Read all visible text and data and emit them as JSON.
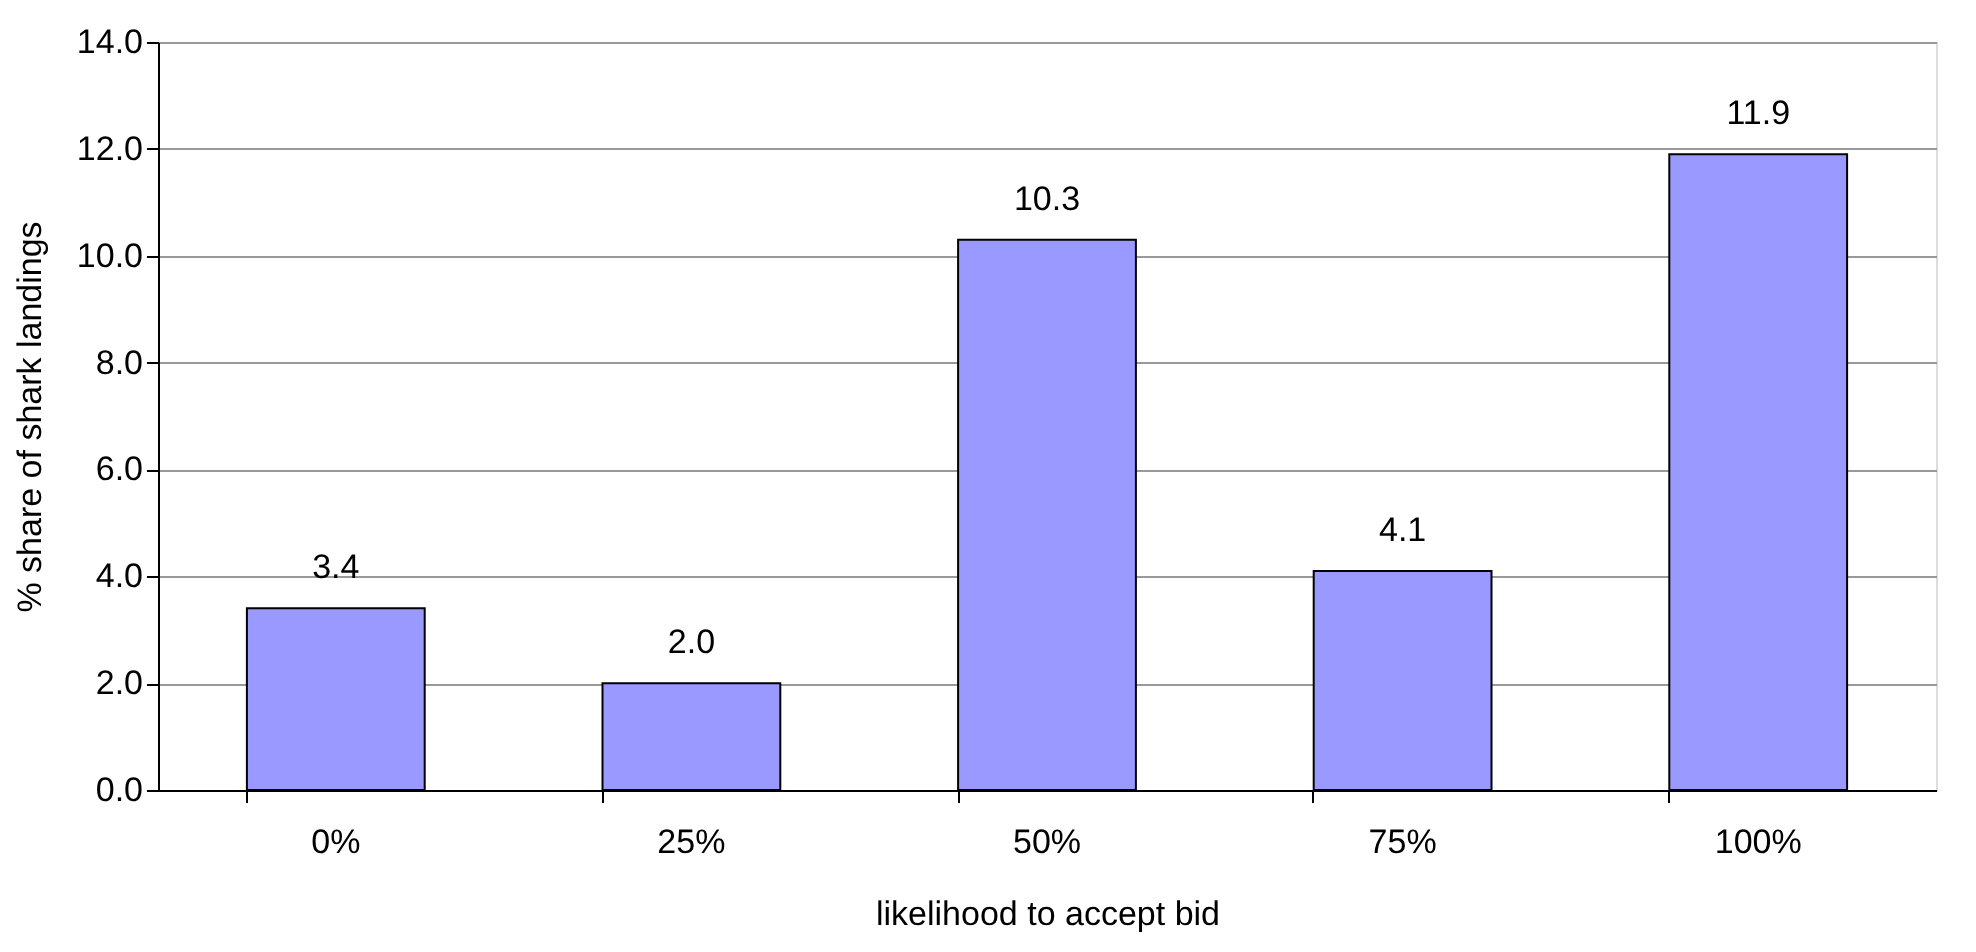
{
  "chart_data": {
    "type": "bar",
    "xlabel": "likelihood to accept bid",
    "ylabel": "% share of shark landings",
    "categories": [
      "0%",
      "25%",
      "50%",
      "75%",
      "100%"
    ],
    "values": [
      3.4,
      2.0,
      10.3,
      4.1,
      11.9
    ],
    "color": "#9999ff",
    "ylim": [
      0,
      14
    ],
    "yticks": [
      {
        "value": 0,
        "label": "0.0"
      },
      {
        "value": 2,
        "label": "2.0"
      },
      {
        "value": 4,
        "label": "4.0"
      },
      {
        "value": 6,
        "label": "6.0"
      },
      {
        "value": 8,
        "label": "8.0"
      },
      {
        "value": 10,
        "label": "10.0"
      },
      {
        "value": 12,
        "label": "12.0"
      },
      {
        "value": 14,
        "label": "14.0"
      }
    ],
    "value_labels": [
      "3.4",
      "2.0",
      "10.3",
      "4.1",
      "11.9"
    ],
    "grid": "y"
  }
}
